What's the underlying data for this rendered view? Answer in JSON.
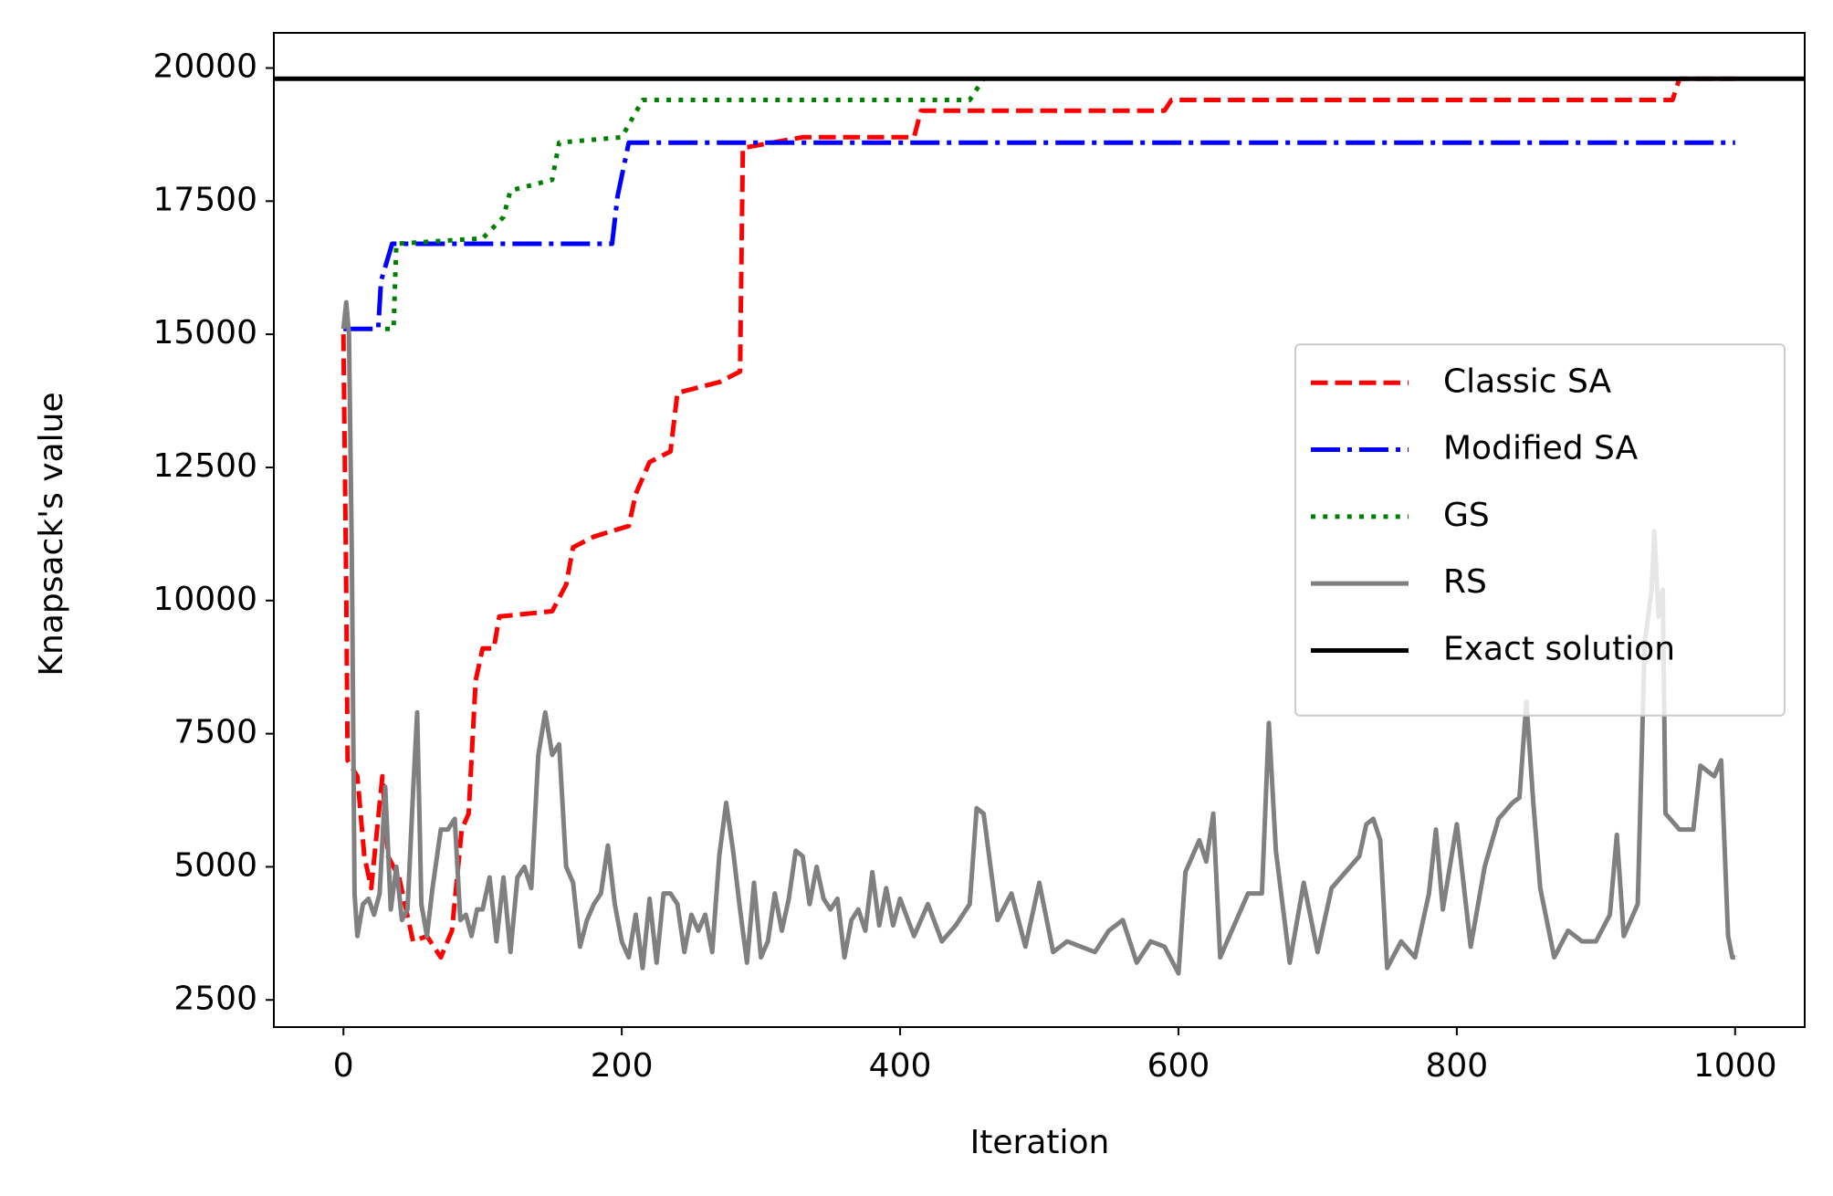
{
  "chart_data": {
    "type": "line",
    "xlabel": "Iteration",
    "ylabel": "Knapsack's value",
    "xlim": [
      -50,
      1050
    ],
    "ylim": [
      1990,
      20660
    ],
    "xticks": [
      0,
      200,
      400,
      600,
      800,
      1000
    ],
    "yticks": [
      2500,
      5000,
      7500,
      10000,
      12500,
      15000,
      17500,
      20000
    ],
    "grid": false,
    "legend": "center right",
    "series": [
      {
        "name": "Classic SA",
        "color": "#ff0000",
        "linestyle": "dashed",
        "x": [
          0,
          2,
          3,
          10,
          15,
          20,
          28,
          32,
          40,
          50,
          60,
          70,
          78,
          85,
          90,
          95,
          100,
          108,
          112,
          150,
          160,
          165,
          180,
          205,
          210,
          220,
          235,
          240,
          270,
          285,
          287,
          330,
          410,
          415,
          590,
          595,
          955,
          960,
          1000
        ],
        "values": [
          15000,
          10200,
          7000,
          6700,
          5200,
          4600,
          6700,
          5200,
          4800,
          3600,
          3700,
          3300,
          3800,
          5700,
          6000,
          8500,
          9100,
          9100,
          9700,
          9800,
          10300,
          11000,
          11200,
          11400,
          12000,
          12600,
          12800,
          13900,
          14100,
          14300,
          18500,
          18700,
          18700,
          19200,
          19200,
          19400,
          19400,
          19800,
          19800
        ]
      },
      {
        "name": "Modified SA",
        "color": "#0000ff",
        "linestyle": "dashdot",
        "x": [
          0,
          25,
          27,
          35,
          193,
          197,
          205,
          1000
        ],
        "values": [
          15100,
          15100,
          16000,
          16700,
          16700,
          17600,
          18600,
          18600
        ]
      },
      {
        "name": "GS",
        "color": "#008000",
        "linestyle": "dotted",
        "x": [
          30,
          36,
          38,
          100,
          115,
          120,
          150,
          155,
          200,
          215,
          450,
          460
        ],
        "values": [
          15100,
          15100,
          16700,
          16800,
          17200,
          17700,
          17900,
          18600,
          18700,
          19400,
          19400,
          19800
        ]
      },
      {
        "name": "RS",
        "color": "#808080",
        "linestyle": "solid",
        "x": [
          0,
          2,
          4,
          6,
          8,
          10,
          14,
          18,
          22,
          26,
          30,
          34,
          38,
          42,
          46,
          50,
          53,
          56,
          60,
          64,
          70,
          75,
          80,
          84,
          88,
          92,
          96,
          100,
          105,
          110,
          115,
          120,
          125,
          130,
          135,
          140,
          145,
          150,
          155,
          160,
          165,
          170,
          175,
          180,
          185,
          190,
          195,
          200,
          205,
          210,
          215,
          220,
          225,
          230,
          235,
          240,
          245,
          250,
          255,
          260,
          265,
          270,
          275,
          280,
          285,
          290,
          295,
          300,
          305,
          310,
          315,
          320,
          325,
          330,
          335,
          340,
          345,
          350,
          355,
          360,
          365,
          370,
          375,
          380,
          385,
          390,
          395,
          400,
          410,
          420,
          430,
          440,
          450,
          455,
          460,
          465,
          470,
          480,
          490,
          500,
          510,
          520,
          530,
          540,
          550,
          560,
          570,
          580,
          590,
          600,
          605,
          610,
          615,
          620,
          625,
          630,
          640,
          650,
          660,
          665,
          670,
          680,
          690,
          700,
          710,
          720,
          730,
          735,
          740,
          745,
          750,
          760,
          770,
          780,
          785,
          790,
          800,
          810,
          820,
          830,
          840,
          845,
          850,
          855,
          860,
          870,
          880,
          890,
          900,
          910,
          915,
          920,
          930,
          935,
          940,
          942,
          945,
          948,
          950,
          960,
          970,
          975,
          985,
          990,
          995,
          998,
          1000
        ],
        "values": [
          15100,
          15600,
          15000,
          10900,
          4500,
          3700,
          4300,
          4400,
          4100,
          4500,
          6500,
          4200,
          5000,
          4000,
          4200,
          6400,
          7900,
          4300,
          3700,
          4600,
          5700,
          5700,
          5900,
          4000,
          4100,
          3700,
          4200,
          4200,
          4800,
          3600,
          4800,
          3400,
          4800,
          5000,
          4600,
          7100,
          7900,
          7100,
          7300,
          5000,
          4700,
          3500,
          4000,
          4300,
          4500,
          5400,
          4300,
          3600,
          3300,
          4100,
          3100,
          4400,
          3200,
          4500,
          4500,
          4300,
          3400,
          4100,
          3800,
          4100,
          3400,
          5200,
          6200,
          5300,
          4200,
          3200,
          4700,
          3300,
          3600,
          4500,
          3800,
          4400,
          5300,
          5200,
          4300,
          5000,
          4400,
          4200,
          4400,
          3300,
          4000,
          4200,
          3800,
          4900,
          3900,
          4600,
          3900,
          4400,
          3700,
          4300,
          3600,
          3900,
          4300,
          6100,
          6000,
          5000,
          4000,
          4500,
          3500,
          4700,
          3400,
          3600,
          3500,
          3400,
          3800,
          4000,
          3200,
          3600,
          3500,
          3000,
          4900,
          5200,
          5500,
          5100,
          6000,
          3300,
          3900,
          4500,
          4500,
          7700,
          5300,
          3200,
          4700,
          3400,
          4600,
          4900,
          5200,
          5800,
          5900,
          5500,
          3100,
          3600,
          3300,
          4500,
          5700,
          4200,
          5800,
          3500,
          5000,
          5900,
          6200,
          6300,
          8100,
          6200,
          4600,
          3300,
          3800,
          3600,
          3600,
          4100,
          5600,
          3700,
          4300,
          9200,
          10200,
          11300,
          9700,
          10200,
          6000,
          5700,
          5700,
          6900,
          6700,
          7000,
          3700,
          3300,
          3300
        ]
      },
      {
        "name": "Exact solution",
        "color": "#000000",
        "linestyle": "solid",
        "x": [
          -50,
          1050
        ],
        "values": [
          19800,
          19800
        ]
      }
    ]
  }
}
